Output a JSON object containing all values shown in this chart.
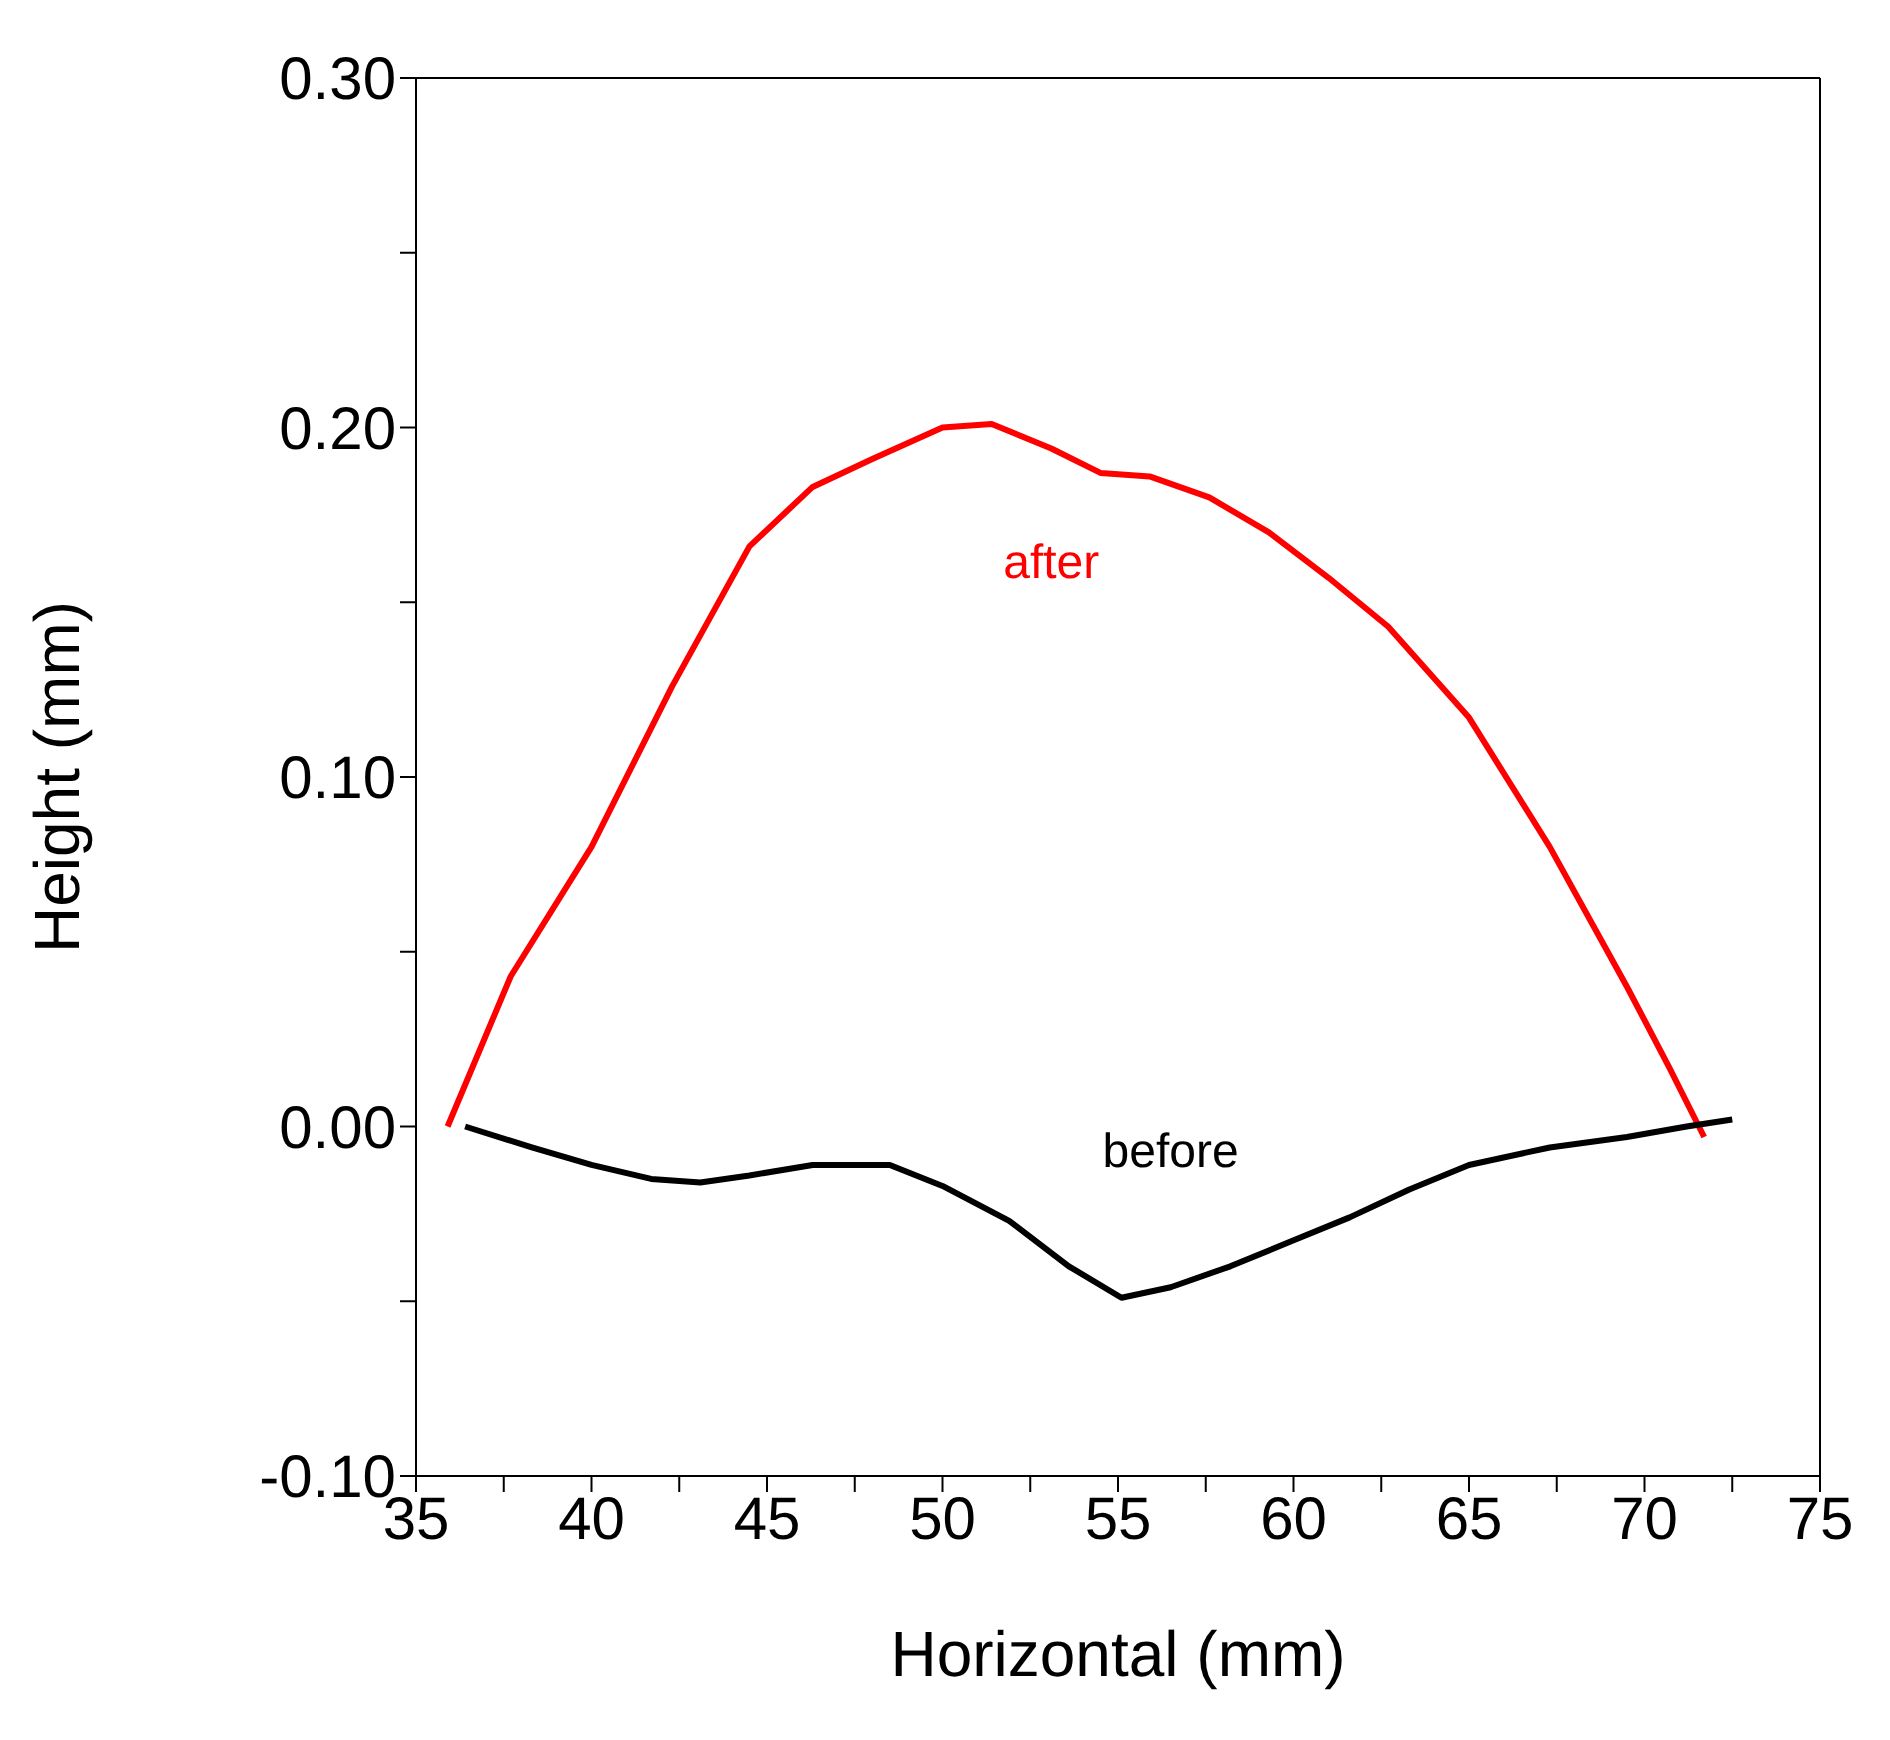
{
  "chart_data": {
    "type": "line",
    "xlabel": "Horizontal (mm)",
    "ylabel": "Height (mm)",
    "xlim": [
      35,
      75
    ],
    "xticks": [
      35,
      {
        "value": 37.5,
        "label": null
      },
      40,
      {
        "value": 42.5,
        "label": null
      },
      45,
      {
        "value": 47.5,
        "label": null
      },
      50,
      {
        "value": 52.5,
        "label": null
      },
      55,
      {
        "value": 57.5,
        "label": null
      },
      60,
      {
        "value": 62.5,
        "label": null
      },
      65,
      {
        "value": 67.5,
        "label": null
      },
      70,
      {
        "value": 72.5,
        "label": null
      },
      75
    ],
    "ylim": [
      -0.1,
      0.3
    ],
    "yticks": [
      {
        "value": -0.1,
        "label": "-0.10"
      },
      {
        "value": -0.05,
        "label": null
      },
      {
        "value": 0,
        "label": "0.00"
      },
      {
        "value": 0.05,
        "label": null
      },
      {
        "value": 0.1,
        "label": "0.10"
      },
      {
        "value": 0.15,
        "label": null
      },
      {
        "value": 0.2,
        "label": "0.20"
      },
      {
        "value": 0.25,
        "label": null
      },
      {
        "value": 0.3,
        "label": "0.30"
      }
    ],
    "grid": false,
    "legend": false,
    "marker": "none",
    "line_style": "solid",
    "series": [
      {
        "name": "after",
        "color": "#ff0000",
        "x": [
          35.9,
          37.7,
          40.0,
          42.3,
          44.5,
          46.3,
          48.0,
          50.0,
          51.4,
          53.1,
          54.5,
          55.9,
          57.6,
          59.3,
          61.0,
          62.7,
          65.0,
          67.3,
          69.5,
          70.7,
          71.7
        ],
        "values": [
          0.0,
          0.043,
          0.08,
          0.126,
          0.166,
          0.183,
          0.191,
          0.2,
          0.201,
          0.194,
          0.187,
          0.186,
          0.18,
          0.17,
          0.157,
          0.143,
          0.117,
          0.08,
          0.04,
          0.017,
          -0.003
        ]
      },
      {
        "name": "before",
        "color": "#000000",
        "x": [
          36.4,
          38.3,
          40.0,
          41.7,
          43.1,
          44.5,
          46.3,
          48.5,
          50.0,
          51.9,
          53.6,
          55.1,
          56.5,
          58.2,
          59.9,
          61.6,
          63.3,
          65.0,
          67.3,
          69.5,
          71.2,
          72.5
        ],
        "values": [
          0.0,
          -0.006,
          -0.011,
          -0.015,
          -0.016,
          -0.014,
          -0.011,
          -0.011,
          -0.017,
          -0.027,
          -0.04,
          -0.049,
          -0.046,
          -0.04,
          -0.033,
          -0.026,
          -0.018,
          -0.011,
          -0.006,
          -0.003,
          0.0,
          0.002
        ]
      }
    ]
  }
}
